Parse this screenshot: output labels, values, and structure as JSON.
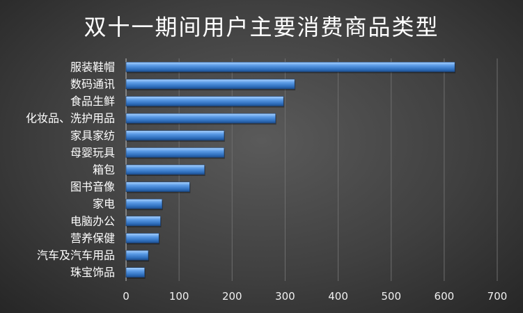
{
  "chart_data": {
    "type": "bar",
    "orientation": "horizontal",
    "title": "双十一期间用户主要消费商品类型",
    "xlabel": "",
    "ylabel": "",
    "categories": [
      "服装鞋帽",
      "数码通讯",
      "食品生鲜",
      "化妆品、洗护用品",
      "家具家纺",
      "母婴玩具",
      "箱包",
      "图书音像",
      "家电",
      "电脑办公",
      "营养保健",
      "汽车及汽车用品",
      "珠宝饰品"
    ],
    "values": [
      620,
      318,
      297,
      282,
      185,
      185,
      148,
      120,
      68,
      65,
      62,
      42,
      35
    ],
    "xlim": [
      0,
      700
    ],
    "x_ticks": [
      "0",
      "100",
      "200",
      "300",
      "400",
      "500",
      "600",
      "700"
    ],
    "grid": true,
    "bar_color": "#4a8ee0",
    "background_color": "#3f3f3f"
  }
}
